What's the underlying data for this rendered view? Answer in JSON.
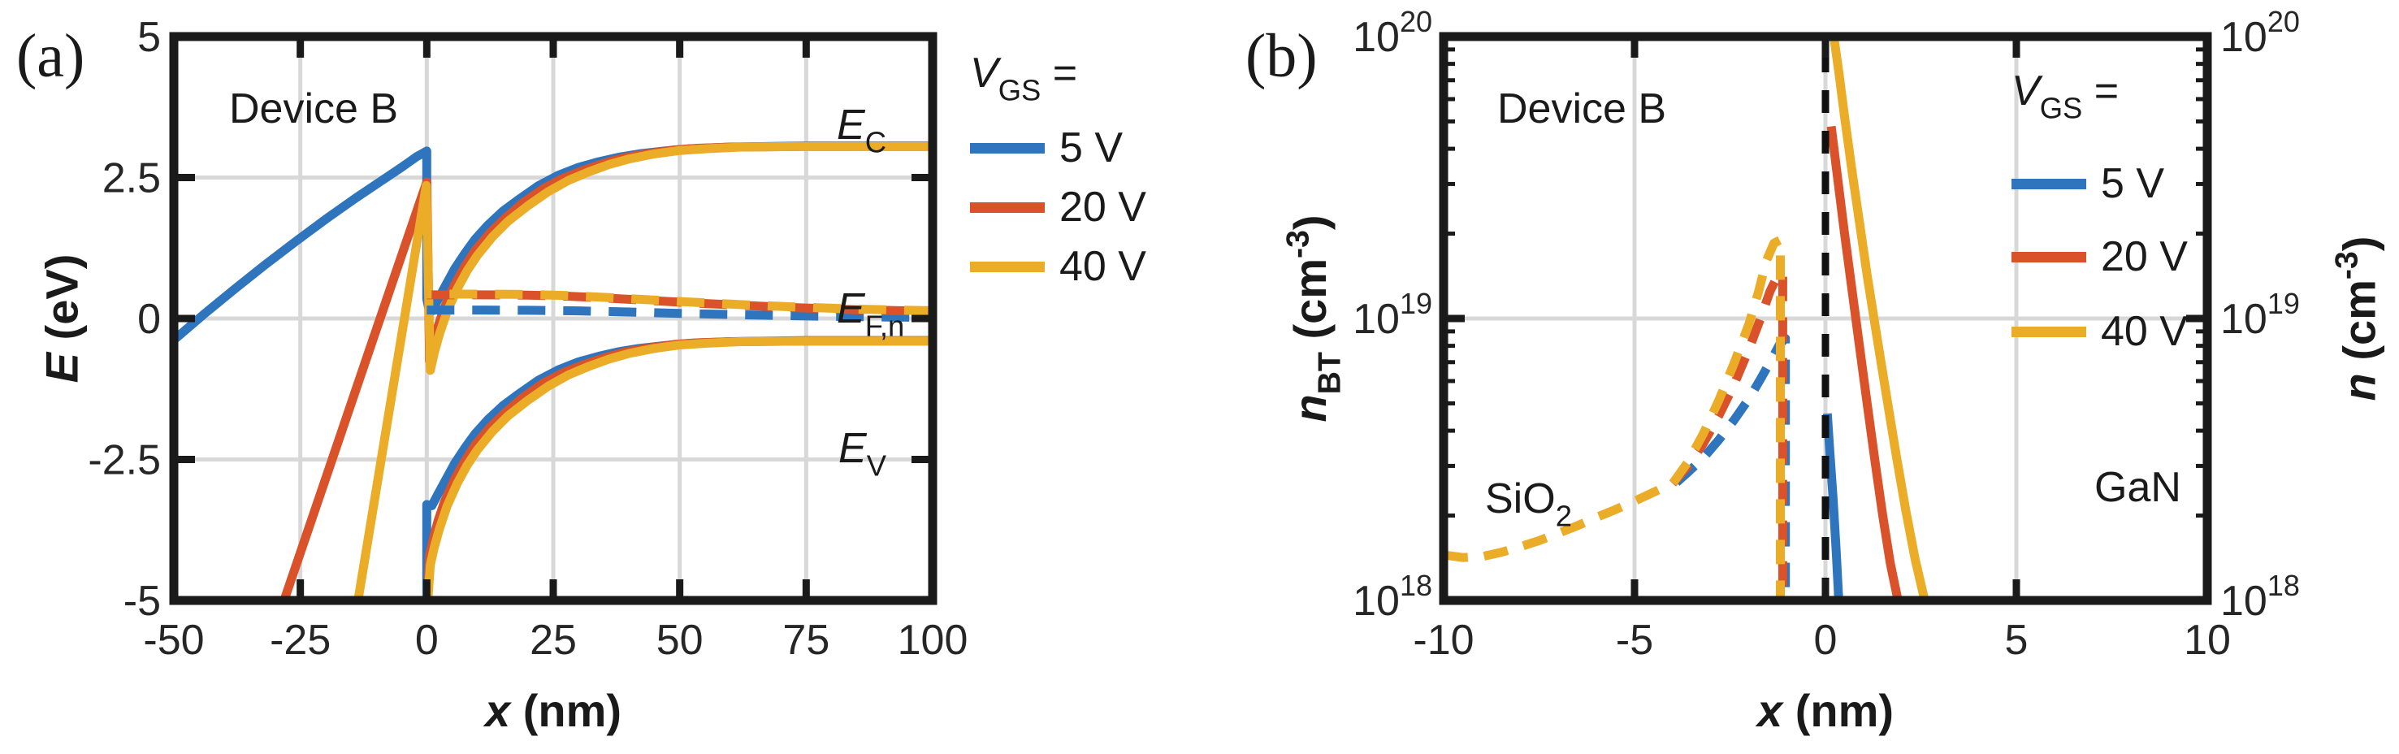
{
  "figure": {
    "panels": [
      {
        "tag": "(a)",
        "annotation": "Device B",
        "xlabel": {
          "var": "x",
          "rest": " (nm)"
        },
        "ylabel": {
          "var": "E",
          "rest": " (eV)"
        },
        "band_labels": {
          "ec": {
            "main": "E",
            "sub": "C"
          },
          "efn": {
            "main": "E",
            "sub": "F,n"
          },
          "ev": {
            "main": "E",
            "sub": "V"
          }
        },
        "legend": {
          "var": "V",
          "sub": "GS",
          "eq": " =",
          "items": [
            {
              "label": "5 V",
              "color": "#2E75BE"
            },
            {
              "label": "20 V",
              "color": "#D9522A"
            },
            {
              "label": "40 V",
              "color": "#EBAD27"
            }
          ]
        }
      },
      {
        "tag": "(b)",
        "annotation": "Device B",
        "xlabel": {
          "var": "x",
          "rest": " (nm)"
        },
        "ylabel_left": {
          "var": "n",
          "sub": "BT",
          "pre": " (cm",
          "sup": "-3",
          "post": ")"
        },
        "ylabel_right": {
          "var": "n",
          "pre": " (cm",
          "sup": "-3",
          "post": ")"
        },
        "regions": {
          "left": {
            "main": "SiO",
            "sub": "2"
          },
          "right": "GaN"
        },
        "legend": {
          "var": "V",
          "sub": "GS",
          "eq": " =",
          "items": [
            {
              "label": "5 V",
              "color": "#2E75BE"
            },
            {
              "label": "20 V",
              "color": "#D9522A"
            },
            {
              "label": "40 V",
              "color": "#EBAD27"
            }
          ]
        }
      }
    ]
  },
  "chart_data": [
    {
      "id": "a",
      "type": "line",
      "title": "Device B",
      "xlabel": "x (nm)",
      "ylabel": "E (eV)",
      "xlim": [
        -50,
        100
      ],
      "ylim": [
        -5,
        5
      ],
      "xticks": [
        -50,
        -25,
        0,
        25,
        50,
        75,
        100
      ],
      "yticks": [
        5,
        2.5,
        0,
        -2.5,
        -5
      ],
      "grid": true,
      "legend_position": "right-outside",
      "series": [
        {
          "name": "EV 5V",
          "color": "#2E75BE",
          "width": 11,
          "x": [
            0,
            0,
            1,
            2,
            3.5,
            5.5,
            7.5,
            9.5,
            12,
            15,
            18,
            22,
            26,
            30,
            34,
            38,
            42,
            47,
            52,
            60,
            75,
            100
          ],
          "y": [
            -5,
            -3.3,
            -3.32,
            -3.15,
            -2.9,
            -2.57,
            -2.3,
            -2.05,
            -1.8,
            -1.55,
            -1.35,
            -1.1,
            -0.91,
            -0.77,
            -0.67,
            -0.59,
            -0.53,
            -0.48,
            -0.44,
            -0.41,
            -0.39,
            -0.39
          ]
        },
        {
          "name": "EV 20V",
          "color": "#D9522A",
          "width": 11,
          "x": [
            0.1,
            0.55,
            1.3,
            2.2,
            3.5,
            5.5,
            7.5,
            9.5,
            12.5,
            15.5,
            19,
            23,
            27,
            31,
            35,
            39,
            44,
            49,
            54,
            61,
            75,
            100
          ],
          "y": [
            -5,
            -4.2,
            -3.9,
            -3.6,
            -3.25,
            -2.85,
            -2.53,
            -2.25,
            -1.93,
            -1.67,
            -1.4,
            -1.15,
            -0.96,
            -0.82,
            -0.7,
            -0.6,
            -0.52,
            -0.46,
            -0.43,
            -0.41,
            -0.4,
            -0.4
          ]
        },
        {
          "name": "EV 40V",
          "color": "#EBAD27",
          "width": 11,
          "x": [
            0.2,
            0.7,
            1.5,
            2.5,
            4,
            6,
            8,
            10,
            13,
            16,
            20,
            24,
            28,
            32,
            36,
            40,
            45,
            50,
            55,
            62,
            75,
            100
          ],
          "y": [
            -5,
            -4.37,
            -4.05,
            -3.73,
            -3.33,
            -2.93,
            -2.6,
            -2.33,
            -2.0,
            -1.73,
            -1.45,
            -1.2,
            -1.0,
            -0.85,
            -0.72,
            -0.62,
            -0.53,
            -0.47,
            -0.44,
            -0.41,
            -0.4,
            -0.4
          ]
        },
        {
          "name": "EC 5V",
          "color": "#2E75BE",
          "width": 11,
          "x": [
            -50,
            -44,
            -38,
            -32,
            -26,
            -20,
            -14,
            -9,
            -5,
            -2,
            0,
            0,
            0.3,
            1,
            2,
            3.5,
            5.5,
            7.5,
            9.5,
            12,
            15,
            18,
            22,
            26,
            30,
            34,
            38,
            42,
            47,
            52,
            60,
            75,
            100
          ],
          "y": [
            -0.38,
            0.08,
            0.52,
            0.95,
            1.36,
            1.76,
            2.14,
            2.44,
            2.68,
            2.87,
            2.97,
            0.35,
            0.22,
            0.13,
            0.3,
            0.55,
            0.88,
            1.15,
            1.4,
            1.65,
            1.9,
            2.1,
            2.35,
            2.54,
            2.68,
            2.78,
            2.86,
            2.92,
            2.97,
            3.01,
            3.04,
            3.06,
            3.06
          ]
        },
        {
          "name": "EC 20V",
          "color": "#D9522A",
          "width": 11,
          "x": [
            -28.2,
            -20,
            -12,
            -6,
            -2,
            0,
            0.55,
            1.3,
            2.2,
            3.5,
            5.5,
            7.5,
            9.5,
            12.5,
            15.5,
            19,
            23,
            27,
            31,
            35,
            39,
            44,
            49,
            54,
            61,
            75,
            100
          ],
          "y": [
            -5,
            -2.84,
            -0.73,
            0.85,
            1.9,
            2.42,
            -0.75,
            -0.45,
            -0.15,
            0.2,
            0.6,
            0.92,
            1.2,
            1.52,
            1.78,
            2.05,
            2.3,
            2.49,
            2.63,
            2.75,
            2.85,
            2.93,
            2.99,
            3.02,
            3.04,
            3.05,
            3.05
          ]
        },
        {
          "name": "EC 40V",
          "color": "#EBAD27",
          "width": 11,
          "x": [
            -13.6,
            -8,
            -4,
            -1,
            -0.1,
            0.7,
            1.5,
            2.5,
            4,
            6,
            8,
            10,
            13,
            16,
            20,
            24,
            28,
            32,
            36,
            40,
            45,
            50,
            55,
            62,
            75,
            100
          ],
          "y": [
            -5,
            -1.95,
            0.23,
            1.87,
            2.36,
            -0.92,
            -0.6,
            -0.28,
            0.12,
            0.52,
            0.85,
            1.12,
            1.45,
            1.72,
            2.0,
            2.25,
            2.45,
            2.6,
            2.73,
            2.83,
            2.92,
            2.98,
            3.01,
            3.04,
            3.05,
            3.05
          ]
        },
        {
          "name": "EFn 5V",
          "color": "#2E75BE",
          "width": 11,
          "dash": "34 22",
          "x": [
            0,
            10,
            20,
            30,
            40,
            50,
            60,
            75,
            90,
            100
          ],
          "y": [
            0.15,
            0.15,
            0.145,
            0.135,
            0.115,
            0.09,
            0.07,
            0.045,
            0.028,
            0.02
          ]
        },
        {
          "name": "EFn 20V",
          "color": "#D9522A",
          "width": 11,
          "dash": "34 22",
          "x": [
            0,
            10,
            20,
            28,
            36,
            44,
            52,
            62,
            72,
            85,
            100
          ],
          "y": [
            0.42,
            0.42,
            0.415,
            0.395,
            0.36,
            0.32,
            0.28,
            0.235,
            0.195,
            0.155,
            0.125
          ]
        },
        {
          "name": "EFn 40V",
          "color": "#EBAD27",
          "width": 11,
          "dash": "34 22",
          "dashoffset": 28,
          "x": [
            0,
            10,
            20,
            28,
            36,
            44,
            52,
            62,
            72,
            85,
            100
          ],
          "y": [
            0.432,
            0.432,
            0.427,
            0.407,
            0.372,
            0.332,
            0.292,
            0.247,
            0.207,
            0.167,
            0.137
          ]
        }
      ]
    },
    {
      "id": "b",
      "type": "line",
      "title": "Device B",
      "xlabel": "x (nm)",
      "ylabel_left": "nBT (cm-3)",
      "ylabel_right": "n (cm-3)",
      "xlim": [
        -10,
        10
      ],
      "ylim": [
        1e+18,
        1e+20
      ],
      "yscale": "log",
      "xticks": [
        -10,
        -5,
        0,
        5,
        10
      ],
      "yticks": [
        1e+18,
        1e+19,
        1e+20
      ],
      "ytick_style": "pow",
      "right_labels": true,
      "grid": true,
      "legend_position": "inside-top-right",
      "series": [
        {
          "name": "nBT 5V",
          "color": "#2E75BE",
          "width": 11,
          "dash": "30 20",
          "x": [
            -3.9,
            -3.6,
            -3.2,
            -2.8,
            -2.4,
            -2.0,
            -1.7,
            -1.4,
            -1.2,
            -1.05,
            -1.05
          ],
          "y": [
            2.62e+18,
            2.85e+18,
            3.2e+18,
            3.7e+18,
            4.35e+18,
            5.2e+18,
            6.1e+18,
            7.2e+18,
            8.1e+18,
            8.5e+18,
            1e+18
          ]
        },
        {
          "name": "nBT 20V",
          "color": "#D9522A",
          "width": 11,
          "dash": "30 20",
          "x": [
            -4.0,
            -3.6,
            -3.2,
            -2.8,
            -2.4,
            -2.0,
            -1.7,
            -1.45,
            -1.25,
            -1.12,
            -1.12
          ],
          "y": [
            2.6e+18,
            3e+18,
            3.6e+18,
            4.5e+18,
            5.8e+18,
            7.8e+18,
            1e+19,
            1.25e+19,
            1.42e+19,
            1.45e+19,
            1e+18
          ]
        },
        {
          "name": "nBT 40V",
          "color": "#EBAD27",
          "width": 11,
          "dash": "30 20",
          "x": [
            -10,
            -9.5,
            -9,
            -8.5,
            -8,
            -7.5,
            -7,
            -6.5,
            -6,
            -5.5,
            -5,
            -4.5,
            -4,
            -3.6,
            -3.2,
            -2.8,
            -2.4,
            -2.0,
            -1.75,
            -1.55,
            -1.35,
            -1.18,
            -1.18
          ],
          "y": [
            1.45e+18,
            1.42e+18,
            1.43e+18,
            1.48e+18,
            1.55e+18,
            1.63e+18,
            1.73e+18,
            1.84e+18,
            1.97e+18,
            2.1e+18,
            2.25e+18,
            2.42e+18,
            2.6e+18,
            3.1e+18,
            3.9e+18,
            5.1e+18,
            6.9e+18,
            9.6e+18,
            1.25e+19,
            1.6e+19,
            1.85e+19,
            1.9e+19,
            1e+18
          ]
        },
        {
          "name": "n 5V",
          "color": "#2E75BE",
          "width": 11,
          "x": [
            0.05,
            0.12,
            0.2,
            0.28,
            0.35
          ],
          "y": [
            4.6e+18,
            3.3e+18,
            2.3e+18,
            1.5e+18,
            1e+18
          ]
        },
        {
          "name": "n 20V",
          "color": "#D9522A",
          "width": 11,
          "x": [
            0.15,
            0.3,
            0.5,
            0.7,
            0.9,
            1.1,
            1.3,
            1.5,
            1.7,
            1.9
          ],
          "y": [
            4.8e+19,
            3.3e+19,
            2e+19,
            1.25e+19,
            7.8e+18,
            4.9e+18,
            3.1e+18,
            2e+18,
            1.35e+18,
            1e+18
          ]
        },
        {
          "name": "n 40V",
          "color": "#EBAD27",
          "width": 11,
          "x": [
            0.22,
            0.35,
            0.5,
            0.7,
            0.9,
            1.1,
            1.35,
            1.6,
            1.85,
            2.1,
            2.35,
            2.6
          ],
          "y": [
            1e+20,
            7.5e+19,
            5.2e+19,
            3.3e+19,
            2.15e+19,
            1.4e+19,
            8.6e+18,
            5.3e+18,
            3.3e+18,
            2.1e+18,
            1.4e+18,
            1e+18
          ]
        },
        {
          "name": "interface",
          "color": "#111111",
          "width": 9,
          "dash": "28 22",
          "x": [
            0,
            0
          ],
          "y": [
            1e+18,
            1e+20
          ]
        }
      ]
    }
  ]
}
